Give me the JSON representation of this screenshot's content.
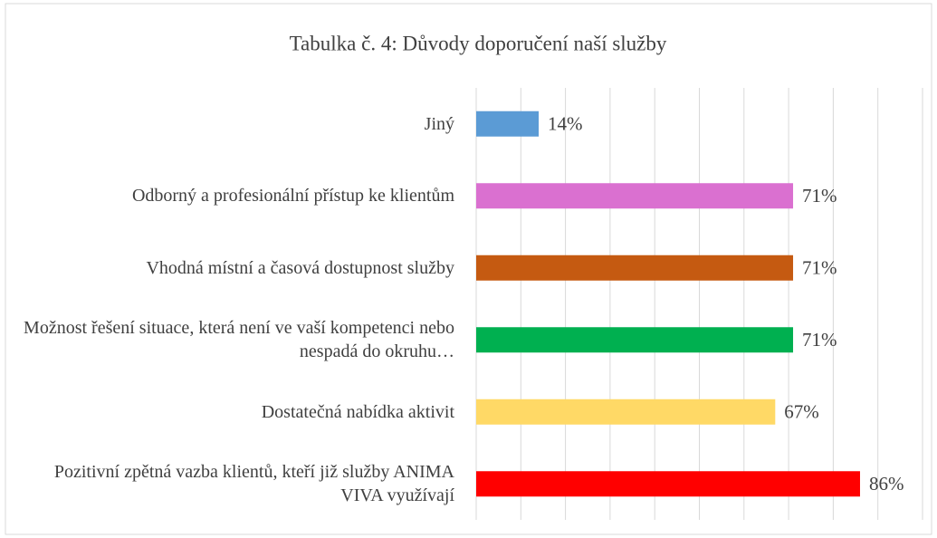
{
  "chart_data": {
    "type": "barh",
    "title": "Tabulka č. 4: Důvody doporučení naší služby",
    "categories": [
      "Jiný",
      "Odborný a profesionální přístup ke klientům",
      "Vhodná místní a časová dostupnost služby",
      "Možnost řešení situace, která není ve vaší kompetenci nebo nespadá do okruhu…",
      "Dostatečná nabídka aktivit",
      "Pozitivní zpětná vazba klientů, kteří již služby ANIMA VIVA využívají"
    ],
    "values": [
      14,
      71,
      71,
      71,
      67,
      86
    ],
    "value_labels": [
      "14%",
      "71%",
      "71%",
      "71%",
      "67%",
      "86%"
    ],
    "colors": [
      "#5b9bd5",
      "#da70d0",
      "#c55a11",
      "#00b050",
      "#ffd966",
      "#ff0000"
    ],
    "xlim": [
      0,
      100
    ],
    "xticks": [
      0,
      10,
      20,
      30,
      40,
      50,
      60,
      70,
      80,
      90,
      100
    ],
    "grid": true
  }
}
